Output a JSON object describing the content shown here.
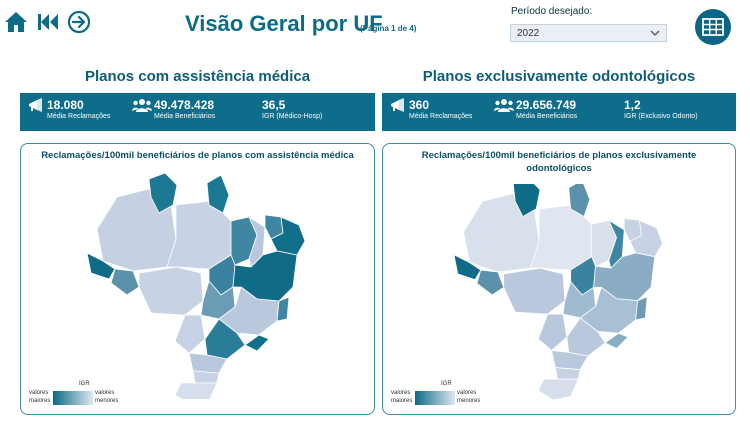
{
  "header": {
    "title": "Visão Geral por UF",
    "subtitle": "(Página 1 de 4)",
    "period_label": "Período desejado:",
    "period_value": "2022"
  },
  "nav": {
    "icons": [
      "home-icon",
      "skip-back-icon",
      "arrow-circle-right-icon"
    ]
  },
  "left": {
    "title": "Planos com assistência médica",
    "kpis": [
      {
        "value": "18.080",
        "label": "Média Reclamações",
        "icon": "megaphone-icon"
      },
      {
        "value": "49.478.428",
        "label": "Média Beneficiários",
        "icon": "users-icon"
      },
      {
        "value": "36,5",
        "label": "IGR (Médico-Hosp)"
      }
    ],
    "map_title": "Reclamações/100mil beneficiários de planos com assistência médica"
  },
  "right": {
    "title": "Planos exclusivamente odontológicos",
    "kpis": [
      {
        "value": "360",
        "label": "Média Reclamações",
        "icon": "megaphone-icon"
      },
      {
        "value": "29.656.749",
        "label": "Média Beneficiários",
        "icon": "users-icon"
      },
      {
        "value": "1,2",
        "label": "IGR (Exclusivo Odonto)"
      }
    ],
    "map_title": "Reclamações/100mil beneficiários de planos exclusivamente odontológicos"
  },
  "legend": {
    "title": "IGR",
    "left_top": "valores",
    "left_bottom": "maiores",
    "right_top": "valores",
    "right_bottom": "menores"
  },
  "colors": {
    "brand": "#0e6d8b",
    "dark": "#0c5f78",
    "light": "#dfe6ef"
  }
}
